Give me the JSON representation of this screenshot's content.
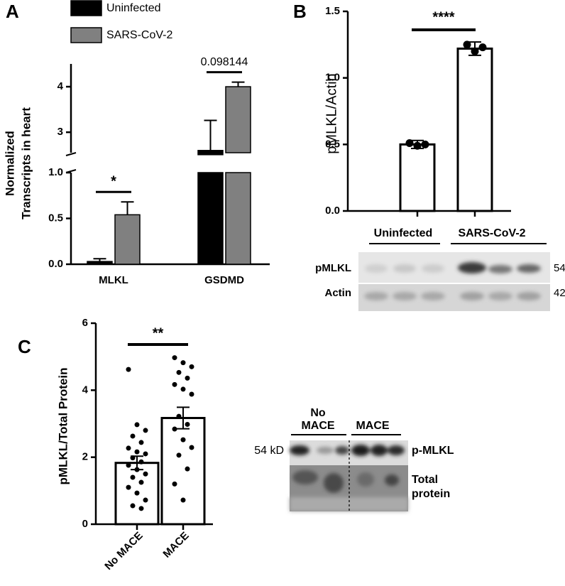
{
  "chart_data": [
    {
      "panel": "A",
      "type": "bar",
      "categories": [
        "MLKL",
        "GSDMD"
      ],
      "series": [
        {
          "name": "Uninfected",
          "color": "#000000",
          "values": [
            0.03,
            2.6
          ],
          "errors": [
            0.03,
            0.66
          ]
        },
        {
          "name": "SARS-CoV-2",
          "color": "#808080",
          "values": [
            0.54,
            4.0
          ],
          "errors": [
            0.14,
            0.1
          ]
        }
      ],
      "ylabel": [
        "Normalized",
        "Transcripts in heart"
      ],
      "segments": [
        {
          "ylim": [
            0,
            1
          ],
          "yticks": [
            {
              "value": 0,
              "label": "0.0"
            },
            {
              "value": 0.5,
              "label": "0.5"
            },
            {
              "value": 1,
              "label": "1.0"
            }
          ]
        },
        {
          "ylim": [
            2.55,
            4.5
          ],
          "yticks": [
            3,
            4
          ]
        }
      ],
      "annotations": [
        "*",
        "0.098144"
      ]
    },
    {
      "panel": "B",
      "type": "bar",
      "categories": [
        "Uninfected",
        "SARS-CoV-2"
      ],
      "values": [
        0.5,
        1.22
      ],
      "errors": [
        0.03,
        0.05
      ],
      "points": [
        [
          0.51,
          0.49,
          0.5
        ],
        [
          1.25,
          1.2,
          1.23
        ]
      ],
      "color": "#ffffff",
      "ylabel": "pMLKL/Actin",
      "ylim": [
        0,
        1.5
      ],
      "yticks": [
        {
          "value": 0,
          "label": "0.0"
        },
        {
          "value": 0.5,
          "label": "0.5"
        },
        {
          "value": 1,
          "label": "1.0"
        },
        {
          "value": 1.5,
          "label": "1.5"
        }
      ],
      "annotation": "****",
      "blot": {
        "rows": [
          "pMLKL",
          "Actin"
        ],
        "sizes": [
          "54kD",
          "42kD"
        ]
      }
    },
    {
      "panel": "C",
      "type": "bar",
      "categories": [
        "No MACE",
        "MACE"
      ],
      "values": [
        1.83,
        3.17
      ],
      "errors": [
        0.2,
        0.32
      ],
      "points": [
        [
          4.62,
          2.97,
          2.8,
          2.63,
          2.44,
          2.27,
          2.16,
          2.1,
          1.98,
          1.86,
          1.76,
          1.63,
          1.5,
          1.4,
          1.25,
          1.1,
          0.93,
          0.72,
          0.55,
          0.47
        ],
        [
          4.97,
          4.82,
          4.7,
          4.53,
          4.36,
          4.17,
          4.03,
          3.88,
          3.22,
          2.98,
          2.84,
          2.52,
          2.29,
          2.06,
          1.65,
          1.2,
          0.72
        ]
      ],
      "color": "#ffffff",
      "ylabel": "pMLKL/Total Protein",
      "ylim": [
        0,
        6
      ],
      "yticks": [
        0,
        2,
        4,
        6
      ],
      "annotation": "**",
      "blot": {
        "groups": [
          [
            "No",
            "MACE"
          ],
          [
            "MACE"
          ]
        ],
        "size": "54 kD",
        "rows": [
          [
            "p-MLKL"
          ],
          [
            "Total",
            "protein"
          ]
        ]
      }
    }
  ]
}
